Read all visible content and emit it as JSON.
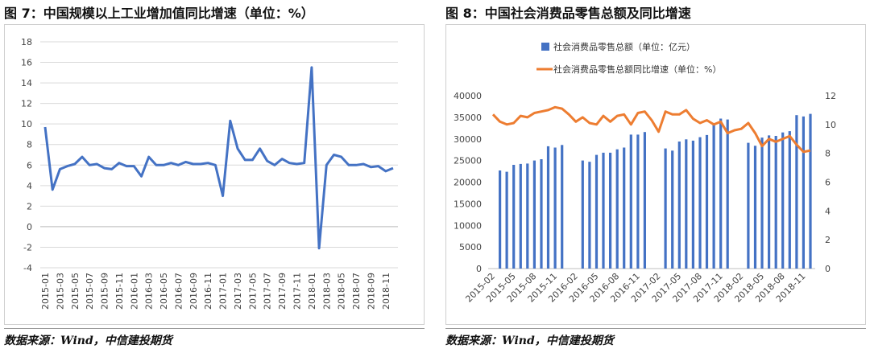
{
  "fig7": {
    "title": "图 7：中国规模以上工业增加值同比增速（单位：%）",
    "source": "数据来源：Wind，中信建投期货"
  },
  "fig8": {
    "title": "图 8：中国社会消费品零售总额及同比增速",
    "source": "数据来源：Wind，中信建投期货"
  },
  "colors": {
    "bar": "#4472c4",
    "line7": "#4472c4",
    "line8": "#ed7d31",
    "grid": "#d9d9d9"
  },
  "chart_data": [
    {
      "type": "line",
      "title": "",
      "ylim": [
        -4,
        18
      ],
      "yticks": [
        -4,
        -2,
        0,
        2,
        4,
        6,
        8,
        10,
        12,
        14,
        16,
        18
      ],
      "grid": true,
      "xticks": [
        "2015-01",
        "2015-03",
        "2015-05",
        "2015-07",
        "2015-09",
        "2015-11",
        "2016-01",
        "2016-03",
        "2016-05",
        "2016-07",
        "2016-09",
        "2016-11",
        "2017-01",
        "2017-03",
        "2017-05",
        "2017-07",
        "2017-09",
        "2017-11",
        "2018-01",
        "2018-03",
        "2018-05",
        "2018-07",
        "2018-09",
        "2018-11"
      ],
      "x": [
        "2015-01",
        "2015-02",
        "2015-03",
        "2015-04",
        "2015-05",
        "2015-06",
        "2015-07",
        "2015-08",
        "2015-09",
        "2015-10",
        "2015-11",
        "2015-12",
        "2016-01",
        "2016-02",
        "2016-03",
        "2016-04",
        "2016-05",
        "2016-06",
        "2016-07",
        "2016-08",
        "2016-09",
        "2016-10",
        "2016-11",
        "2016-12",
        "2017-01",
        "2017-02",
        "2017-03",
        "2017-04",
        "2017-05",
        "2017-06",
        "2017-07",
        "2017-08",
        "2017-09",
        "2017-10",
        "2017-11",
        "2017-12",
        "2018-01",
        "2018-02",
        "2018-03",
        "2018-04",
        "2018-05",
        "2018-06",
        "2018-07",
        "2018-08",
        "2018-09",
        "2018-10",
        "2018-11",
        "2018-12"
      ],
      "series": [
        {
          "values": [
            9.7,
            3.6,
            5.6,
            5.9,
            6.1,
            6.8,
            6.0,
            6.1,
            5.7,
            5.6,
            6.2,
            5.9,
            5.9,
            4.9,
            6.8,
            6.0,
            6.0,
            6.2,
            6.0,
            6.3,
            6.1,
            6.1,
            6.2,
            6.0,
            3.0,
            10.3,
            7.6,
            6.5,
            6.5,
            7.6,
            6.4,
            6.0,
            6.6,
            6.2,
            6.1,
            6.2,
            15.5,
            -2.1,
            6.0,
            7.0,
            6.8,
            6.0,
            6.0,
            6.1,
            5.8,
            5.9,
            5.4,
            5.7
          ]
        }
      ]
    },
    {
      "type": "bar",
      "title": "",
      "legend": "top",
      "legend_entries": [
        "社会消费品零售总额（单位：亿元）",
        "社会消费品零售总额同比增速（单位：%）"
      ],
      "ylim": [
        0,
        40000
      ],
      "yticks": [
        0,
        5000,
        10000,
        15000,
        20000,
        25000,
        30000,
        35000,
        40000
      ],
      "y2lim": [
        0,
        12
      ],
      "y2ticks": [
        0,
        2,
        4,
        6,
        8,
        10,
        12
      ],
      "grid": false,
      "xticks": [
        "2015-02",
        "2015-05",
        "2015-08",
        "2015-11",
        "2016-02",
        "2016-05",
        "2016-08",
        "2016-11",
        "2017-02",
        "2017-05",
        "2017-08",
        "2017-11",
        "2018-02",
        "2018-05",
        "2018-08",
        "2018-11"
      ],
      "x": [
        "2015-02",
        "2015-03",
        "2015-04",
        "2015-05",
        "2015-06",
        "2015-07",
        "2015-08",
        "2015-09",
        "2015-10",
        "2015-11",
        "2015-12",
        "2016-01",
        "2016-02",
        "2016-03",
        "2016-04",
        "2016-05",
        "2016-06",
        "2016-07",
        "2016-08",
        "2016-09",
        "2016-10",
        "2016-11",
        "2016-12",
        "2017-01",
        "2017-02",
        "2017-03",
        "2017-04",
        "2017-05",
        "2017-06",
        "2017-07",
        "2017-08",
        "2017-09",
        "2017-10",
        "2017-11",
        "2017-12",
        "2018-01",
        "2018-02",
        "2018-03",
        "2018-04",
        "2018-05",
        "2018-06",
        "2018-07",
        "2018-08",
        "2018-09",
        "2018-10",
        "2018-11",
        "2018-12"
      ],
      "series": [
        {
          "name": "社会消费品零售总额（单位：亿元）",
          "type": "bar",
          "axis": "left",
          "values": [
            null,
            22700,
            22400,
            24000,
            24200,
            24300,
            25000,
            25300,
            28300,
            28000,
            28600,
            null,
            null,
            25000,
            24700,
            26300,
            26800,
            26800,
            27600,
            28000,
            31000,
            31000,
            31600,
            null,
            null,
            27800,
            27300,
            29400,
            29900,
            29600,
            30400,
            30900,
            33500,
            34700,
            34500,
            null,
            null,
            29100,
            28400,
            30300,
            30800,
            30700,
            31500,
            31800,
            35500,
            35200,
            35800
          ]
        },
        {
          "name": "社会消费品零售总额同比增速（单位：%）",
          "type": "line",
          "axis": "right",
          "values": [
            10.7,
            10.2,
            10.0,
            10.1,
            10.6,
            10.5,
            10.8,
            10.9,
            11.0,
            11.2,
            11.1,
            10.7,
            10.2,
            10.5,
            10.1,
            10.0,
            10.6,
            10.2,
            10.6,
            10.7,
            10.0,
            10.8,
            10.9,
            10.3,
            9.5,
            10.9,
            10.7,
            10.7,
            11.0,
            10.4,
            10.1,
            10.3,
            10.0,
            10.2,
            9.4,
            9.6,
            9.7,
            10.1,
            9.4,
            8.5,
            9.0,
            8.8,
            9.0,
            9.2,
            8.6,
            8.1,
            8.2
          ]
        }
      ]
    }
  ]
}
